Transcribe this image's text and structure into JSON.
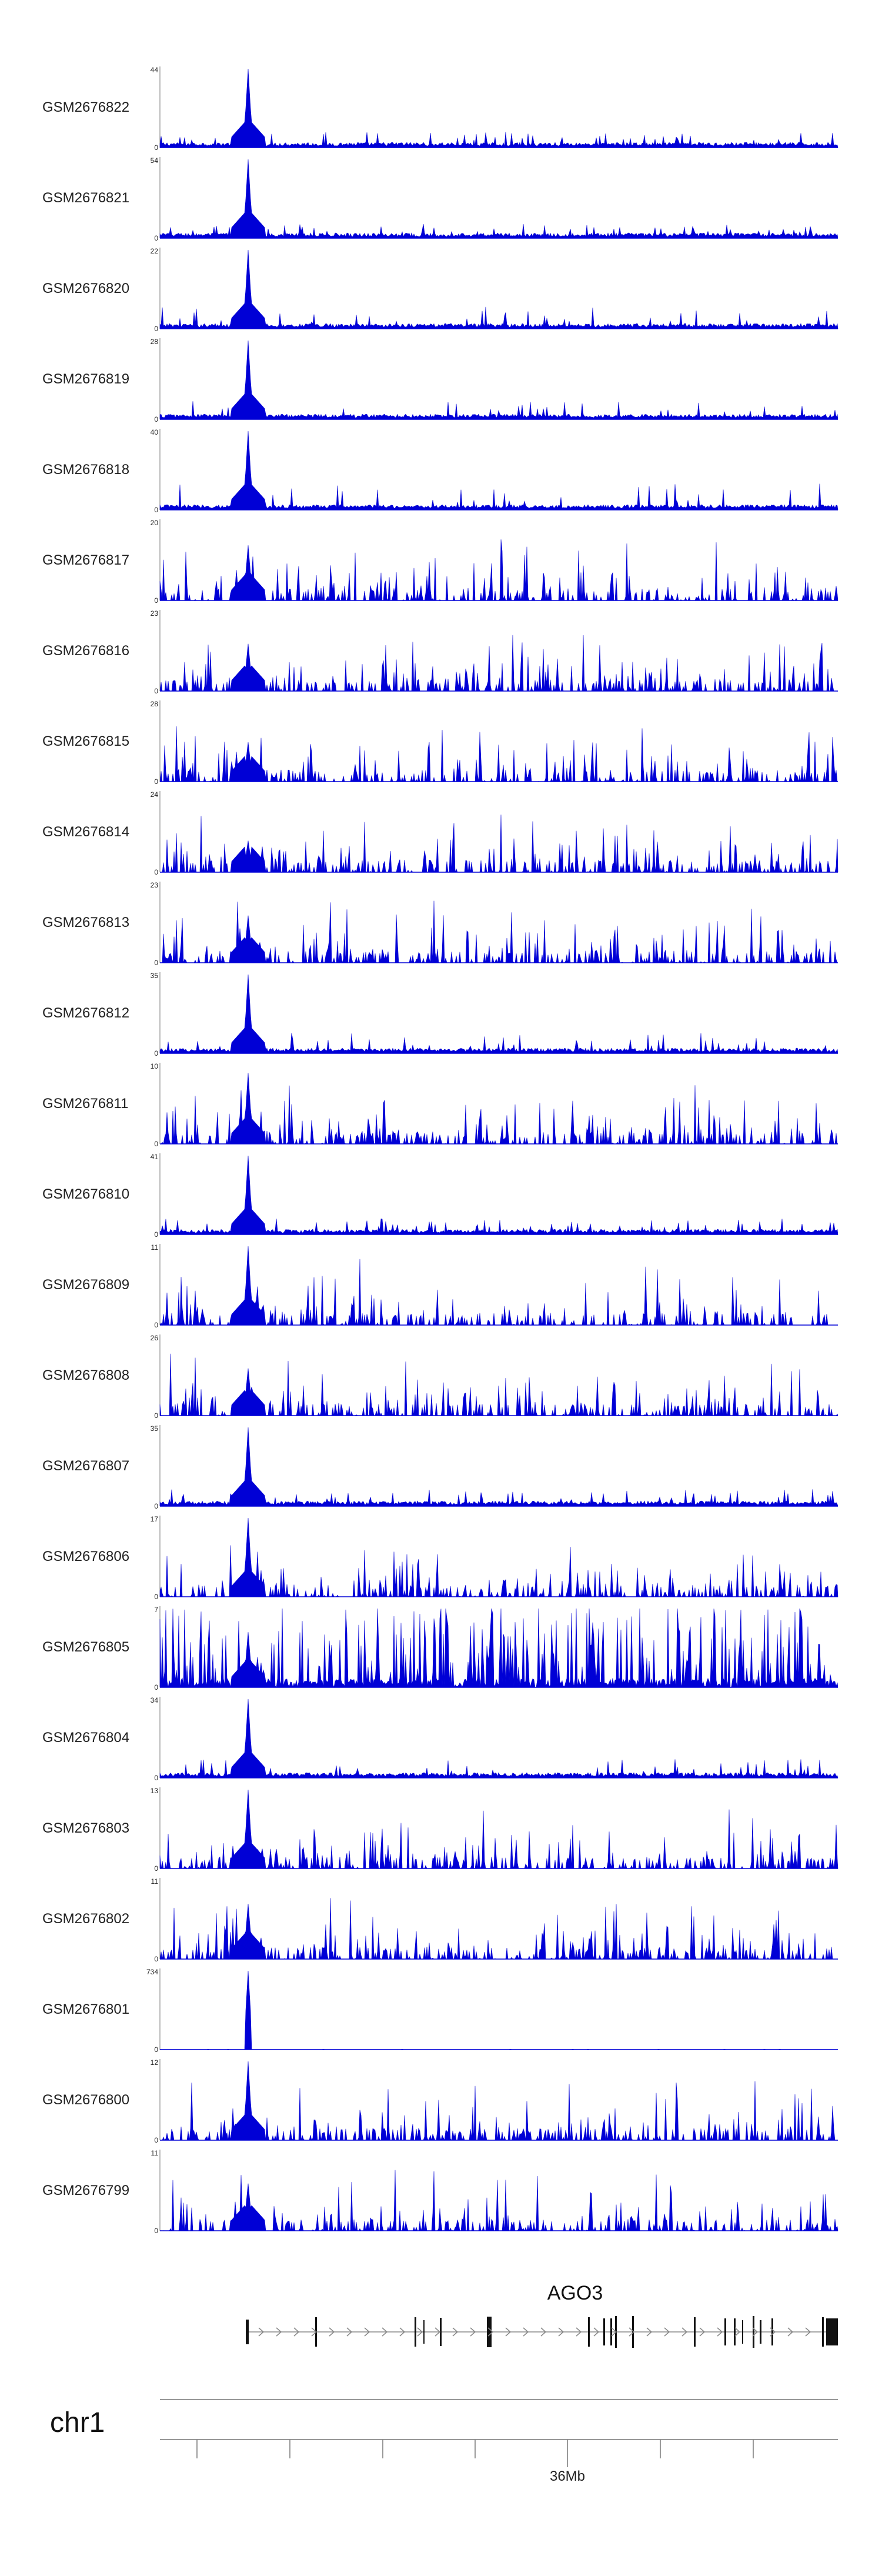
{
  "tracks": [
    {
      "name": "GSM2676822",
      "max": "44",
      "min": "0",
      "profile": "peak",
      "peak_height": 1.0,
      "noise_level": 0.12
    },
    {
      "name": "GSM2676821",
      "max": "54",
      "min": "0",
      "profile": "peak",
      "peak_height": 1.0,
      "noise_level": 0.1
    },
    {
      "name": "GSM2676820",
      "max": "22",
      "min": "0",
      "profile": "peak",
      "peak_height": 1.0,
      "noise_level": 0.2
    },
    {
      "name": "GSM2676819",
      "max": "28",
      "min": "0",
      "profile": "peak",
      "peak_height": 1.0,
      "noise_level": 0.16
    },
    {
      "name": "GSM2676818",
      "max": "40",
      "min": "0",
      "profile": "peak",
      "peak_height": 1.0,
      "noise_level": 0.26
    },
    {
      "name": "GSM2676817",
      "max": "20",
      "min": "0",
      "profile": "spiky",
      "peak_height": 0.7,
      "noise_level": 0.75
    },
    {
      "name": "GSM2676816",
      "max": "23",
      "min": "0",
      "profile": "spiky",
      "peak_height": 0.6,
      "noise_level": 0.7
    },
    {
      "name": "GSM2676815",
      "max": "28",
      "min": "0",
      "profile": "spiky",
      "peak_height": 0.5,
      "noise_level": 0.7
    },
    {
      "name": "GSM2676814",
      "max": "24",
      "min": "0",
      "profile": "spiky",
      "peak_height": 0.4,
      "noise_level": 0.65
    },
    {
      "name": "GSM2676813",
      "max": "23",
      "min": "0",
      "profile": "spiky",
      "peak_height": 0.6,
      "noise_level": 0.75
    },
    {
      "name": "GSM2676812",
      "max": "35",
      "min": "0",
      "profile": "peak",
      "peak_height": 1.0,
      "noise_level": 0.18
    },
    {
      "name": "GSM2676811",
      "max": "10",
      "min": "0",
      "profile": "spiky",
      "peak_height": 0.9,
      "noise_level": 0.8
    },
    {
      "name": "GSM2676810",
      "max": "41",
      "min": "0",
      "profile": "peak",
      "peak_height": 1.0,
      "noise_level": 0.12
    },
    {
      "name": "GSM2676809",
      "max": "11",
      "min": "0",
      "profile": "spiky",
      "peak_height": 1.0,
      "noise_level": 0.75
    },
    {
      "name": "GSM2676808",
      "max": "26",
      "min": "0",
      "profile": "spiky",
      "peak_height": 0.6,
      "noise_level": 0.75
    },
    {
      "name": "GSM2676807",
      "max": "35",
      "min": "0",
      "profile": "peak",
      "peak_height": 1.0,
      "noise_level": 0.14
    },
    {
      "name": "GSM2676806",
      "max": "17",
      "min": "0",
      "profile": "spiky",
      "peak_height": 1.0,
      "noise_level": 0.6
    },
    {
      "name": "GSM2676805",
      "max": "7",
      "min": "0",
      "profile": "dense",
      "peak_height": 0.7,
      "noise_level": 0.9
    },
    {
      "name": "GSM2676804",
      "max": "34",
      "min": "0",
      "profile": "peak",
      "peak_height": 1.0,
      "noise_level": 0.16
    },
    {
      "name": "GSM2676803",
      "max": "13",
      "min": "0",
      "profile": "spiky",
      "peak_height": 1.0,
      "noise_level": 0.75
    },
    {
      "name": "GSM2676802",
      "max": "11",
      "min": "0",
      "profile": "spiky",
      "peak_height": 0.7,
      "noise_level": 0.75
    },
    {
      "name": "GSM2676801",
      "max": "734",
      "min": "0",
      "profile": "single",
      "peak_height": 1.0,
      "noise_level": 0.01
    },
    {
      "name": "GSM2676800",
      "max": "12",
      "min": "0",
      "profile": "spiky",
      "peak_height": 1.0,
      "noise_level": 0.75
    },
    {
      "name": "GSM2676799",
      "max": "11",
      "min": "0",
      "profile": "spiky",
      "peak_height": 0.6,
      "noise_level": 0.75
    }
  ],
  "gene": {
    "name": "AGO3",
    "strand": "+"
  },
  "chromosome": {
    "name": "chr1",
    "tick_label": "36Mb"
  },
  "colors": {
    "signal": "#0000d6",
    "axis": "#777777",
    "gene": "#111111",
    "intron": "#888888"
  }
}
